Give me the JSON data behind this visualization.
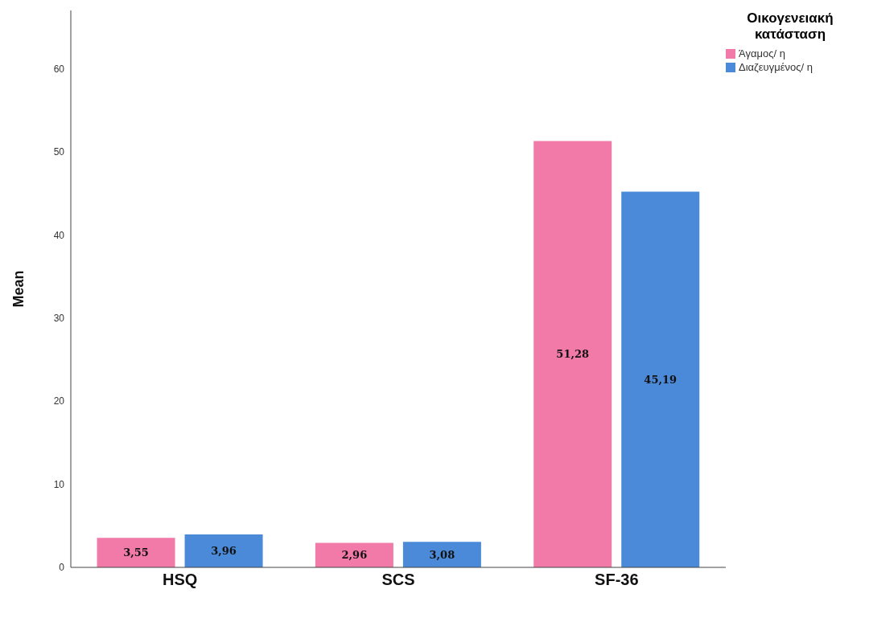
{
  "chart_data": {
    "type": "bar",
    "ylabel": "Mean",
    "legend_title": "Οικογενειακή κατάσταση",
    "categories": [
      "HSQ",
      "SCS",
      "SF-36"
    ],
    "series": [
      {
        "name": "Άγαμος/ η",
        "color": "#f27aa8",
        "values": [
          3.55,
          2.96,
          51.28
        ],
        "value_labels": [
          "3,55",
          "2,96",
          "51,28"
        ]
      },
      {
        "name": "Διαζευγμένος/ η",
        "color": "#4a8ad8",
        "values": [
          3.96,
          3.08,
          45.19
        ],
        "value_labels": [
          "3,96",
          "3,08",
          "45,19"
        ]
      }
    ],
    "ylim": [
      0,
      67
    ],
    "yticks": [
      0,
      10,
      20,
      30,
      40,
      50,
      60
    ],
    "grid": false,
    "legend": "top right"
  }
}
